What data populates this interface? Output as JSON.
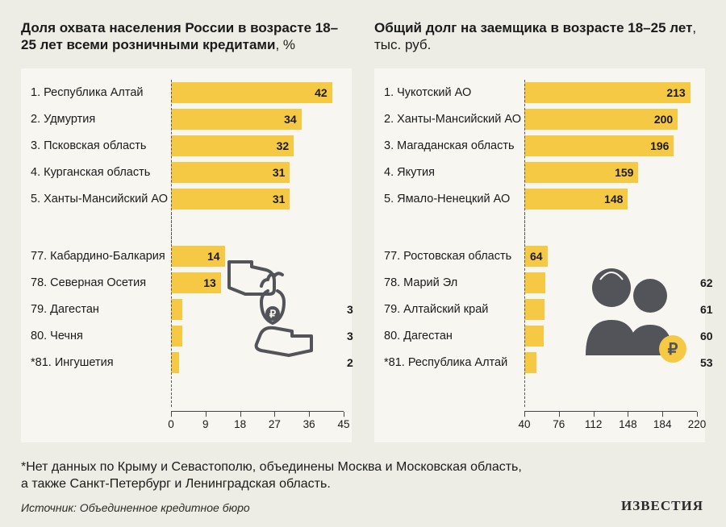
{
  "background_color": "#eeede5",
  "panel_color": "#f7f6f0",
  "bar_color": "#f6c945",
  "text_color": "#1a1a1a",
  "left_chart": {
    "title_main": "Доля охвата населения России в возрасте 18–25 лет всеми розничными кредитами",
    "title_unit": ", %",
    "xlim": [
      0,
      45
    ],
    "ticks": [
      0,
      9,
      18,
      27,
      36,
      45
    ],
    "top": [
      {
        "rank": "1.",
        "label": "Республика Алтай",
        "value": 42
      },
      {
        "rank": "2.",
        "label": "Удмуртия",
        "value": 34
      },
      {
        "rank": "3.",
        "label": "Псковская область",
        "value": 32
      },
      {
        "rank": "4.",
        "label": "Курганская область",
        "value": 31
      },
      {
        "rank": "5.",
        "label": "Ханты-Мансийский АО",
        "value": 31
      }
    ],
    "bottom": [
      {
        "rank": "77.",
        "label": "Кабардино-Балкария",
        "value": 14
      },
      {
        "rank": "78.",
        "label": "Северная Осетия",
        "value": 13
      },
      {
        "rank": "79.",
        "label": "Дагестан",
        "value": 3
      },
      {
        "rank": "80.",
        "label": "Чечня",
        "value": 3
      },
      {
        "rank": "*81.",
        "label": "Ингушетия",
        "value": 2
      }
    ]
  },
  "right_chart": {
    "title_main": "Общий долг на заемщика в возрасте 18–25 лет",
    "title_unit": ", тыс. руб.",
    "xlim": [
      40,
      220
    ],
    "ticks": [
      40,
      76,
      112,
      148,
      184,
      220
    ],
    "top": [
      {
        "rank": "1.",
        "label": "Чукотский АО",
        "value": 213
      },
      {
        "rank": "2.",
        "label": "Ханты-Мансийский АО",
        "value": 200
      },
      {
        "rank": "3.",
        "label": "Магаданская область",
        "value": 196
      },
      {
        "rank": "4.",
        "label": "Якутия",
        "value": 159
      },
      {
        "rank": "5.",
        "label": "Ямало-Ненецкий АО",
        "value": 148
      }
    ],
    "bottom": [
      {
        "rank": "77.",
        "label": "Ростовская область",
        "value": 64
      },
      {
        "rank": "78.",
        "label": "Марий Эл",
        "value": 62
      },
      {
        "rank": "79.",
        "label": "Алтайский край",
        "value": 61
      },
      {
        "rank": "80.",
        "label": "Дагестан",
        "value": 60
      },
      {
        "rank": "*81.",
        "label": "Республика Алтай",
        "value": 53
      }
    ]
  },
  "footnote_l1": "*Нет данных по Крыму и Севастополю, объединены Москва и Московская область,",
  "footnote_l2": "а также Санкт-Петербург и Ленинградская область.",
  "source": "Источник: Объединенное кредитное бюро",
  "logo": "ИЗВЕСТИЯ",
  "illus_color": "#525459",
  "coin_color": "#f6c945",
  "ruble_color": "#525459"
}
